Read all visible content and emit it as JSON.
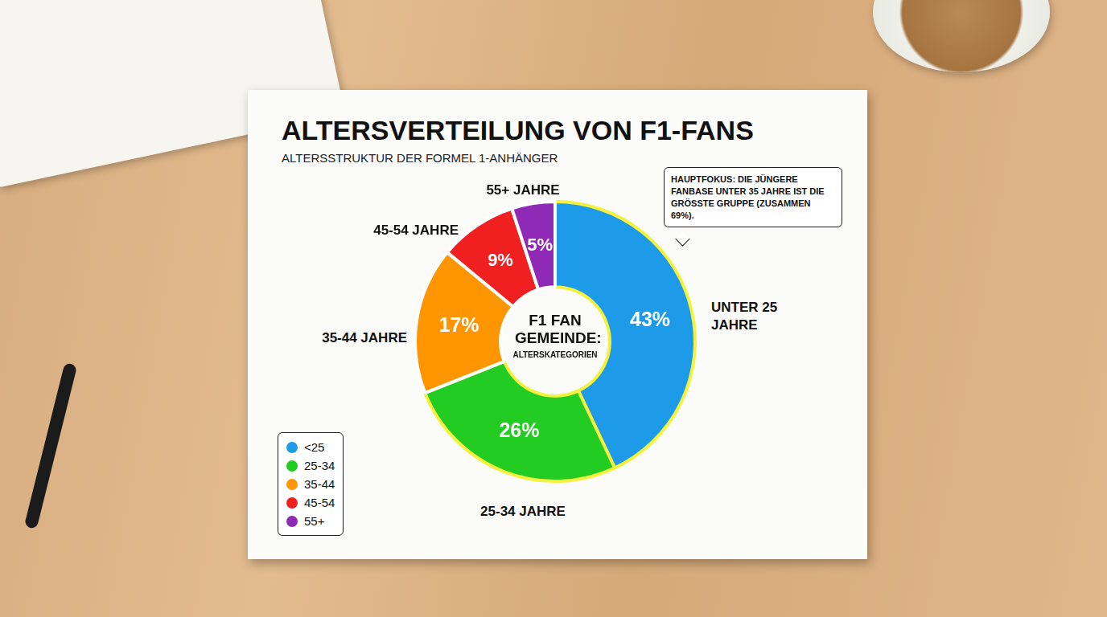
{
  "chart_data": {
    "type": "doughnut",
    "title": "ALTERSVERTEILUNG VON F1-FANS",
    "subtitle": "ALTERSSTRUKTUR DER FORMEL 1-ANHÄNGER",
    "categories": [
      "<25",
      "25-34",
      "35-44",
      "45-54",
      "55+"
    ],
    "values": [
      43,
      26,
      17,
      9,
      5
    ],
    "value_labels": [
      "43%",
      "26%",
      "17%",
      "9%",
      "5%"
    ],
    "slice_labels": [
      "UNTER 25 JAHRE",
      "25-34 JAHRE",
      "35-44 JAHRE",
      "45-54 JAHRE",
      "55+ JAHRE"
    ],
    "colors": [
      "#1e9be8",
      "#22cc22",
      "#ff9500",
      "#f02020",
      "#8e2ab5"
    ],
    "center_title": "F1 FAN GEMEINDE:",
    "center_subtitle": "ALTERSKATEGORIEN",
    "annotation": "HAUPTFOKUS: DIE JÜNGERE FANBASE UNTER 35 JAHRE IST DIE GRÖSSTE GRUPPE (ZUSAMMEN 69%).",
    "data_labels": true,
    "legend": "bottom-left"
  }
}
